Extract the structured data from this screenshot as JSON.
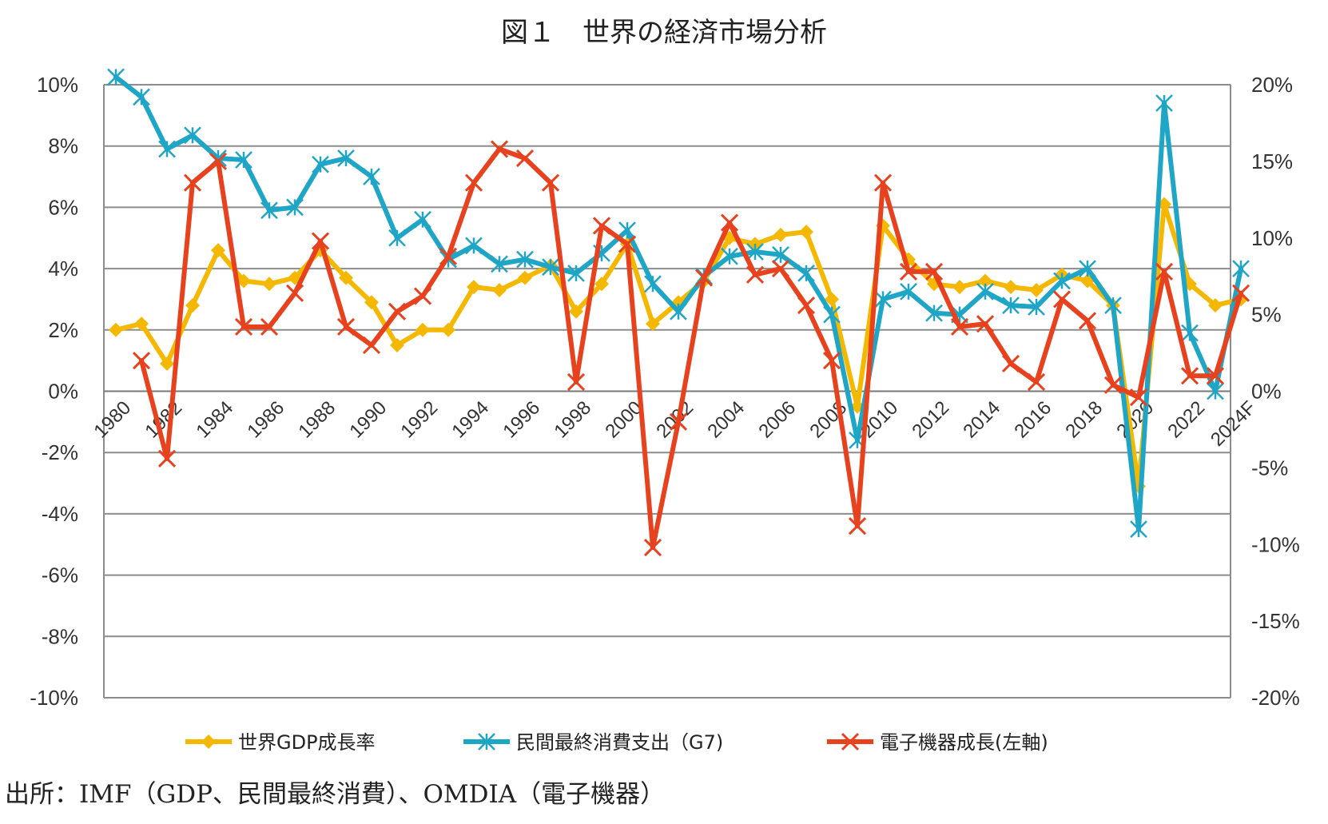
{
  "source_note": "出所：IMF（GDP、民間最終消費）、OMDIA（電子機器）",
  "chart_data": {
    "type": "line",
    "title": "図１　世界の経済市場分析",
    "x": [
      "1980",
      "1981",
      "1982",
      "1983",
      "1984",
      "1985",
      "1986",
      "1987",
      "1988",
      "1989",
      "1990",
      "1991",
      "1992",
      "1993",
      "1994",
      "1995",
      "1996",
      "1997",
      "1998",
      "1999",
      "2000",
      "2001",
      "2002",
      "2003",
      "2004",
      "2005",
      "2006",
      "2007",
      "2008",
      "2009",
      "2010",
      "2011",
      "2012",
      "2013",
      "2014",
      "2015",
      "2016",
      "2017",
      "2018",
      "2019",
      "2020",
      "2021",
      "2022",
      "2023",
      "2024F"
    ],
    "x_tick_labels": [
      "1980",
      "1982",
      "1984",
      "1986",
      "1988",
      "1990",
      "1992",
      "1994",
      "1996",
      "1998",
      "2000",
      "2002",
      "2004",
      "2006",
      "2008",
      "2010",
      "2012",
      "2014",
      "2016",
      "2018",
      "2020",
      "2022",
      "2024F"
    ],
    "left_axis": {
      "ylim": [
        -10,
        10
      ],
      "ticks": [
        "10%",
        "8%",
        "6%",
        "4%",
        "2%",
        "0%",
        "-2%",
        "-4%",
        "-6%",
        "-8%",
        "-10%"
      ]
    },
    "right_axis": {
      "ylim": [
        -20,
        20
      ],
      "ticks": [
        "20%",
        "15%",
        "10%",
        "5%",
        "0%",
        "-5%",
        "-10%",
        "-15%",
        "-20%"
      ]
    },
    "grid": true,
    "legend_position": "bottom",
    "series": [
      {
        "name": "世界GDP成長率",
        "axis": "left",
        "color": "#F5B800",
        "marker": "diamond",
        "values": [
          2.0,
          2.2,
          0.9,
          2.8,
          4.6,
          3.6,
          3.5,
          3.7,
          4.6,
          3.7,
          2.9,
          1.5,
          2.0,
          2.0,
          3.4,
          3.3,
          3.7,
          4.1,
          2.6,
          3.5,
          4.8,
          2.2,
          2.9,
          3.6,
          5.0,
          4.8,
          5.1,
          5.2,
          3.0,
          -0.5,
          5.4,
          4.3,
          3.5,
          3.4,
          3.6,
          3.4,
          3.3,
          3.8,
          3.6,
          2.8,
          -3.1,
          6.1,
          3.5,
          2.8,
          3.0
        ]
      },
      {
        "name": "民間最終消費支出（G7)",
        "axis": "right",
        "color": "#1FA5C6",
        "marker": "asterisk",
        "values": [
          20.5,
          19.2,
          15.8,
          16.7,
          15.2,
          15.1,
          11.8,
          12.0,
          14.8,
          15.2,
          14.0,
          10.0,
          11.2,
          8.6,
          9.5,
          8.3,
          8.6,
          8.1,
          7.7,
          9.0,
          10.5,
          7.0,
          5.2,
          7.5,
          8.8,
          9.1,
          8.9,
          7.7,
          5.0,
          -3.2,
          6.0,
          6.5,
          5.1,
          5.0,
          6.5,
          5.6,
          5.5,
          7.2,
          8.0,
          5.6,
          -9.0,
          18.8,
          3.8,
          0.0,
          8.0
        ]
      },
      {
        "name": "電子機器成長(左軸)",
        "axis": "left",
        "color": "#E8411E",
        "marker": "x",
        "values": [
          null,
          1.0,
          -2.2,
          6.8,
          7.5,
          2.1,
          2.1,
          3.2,
          4.9,
          2.1,
          1.5,
          2.6,
          3.1,
          4.4,
          6.8,
          7.9,
          7.6,
          6.8,
          0.3,
          5.4,
          4.8,
          -5.1,
          -1.0,
          3.7,
          5.5,
          3.8,
          4.0,
          2.8,
          1.0,
          -4.4,
          6.8,
          3.9,
          3.9,
          2.1,
          2.2,
          0.9,
          0.3,
          3.0,
          2.3,
          0.2,
          -0.2,
          3.9,
          0.5,
          0.5,
          3.2
        ]
      }
    ]
  }
}
